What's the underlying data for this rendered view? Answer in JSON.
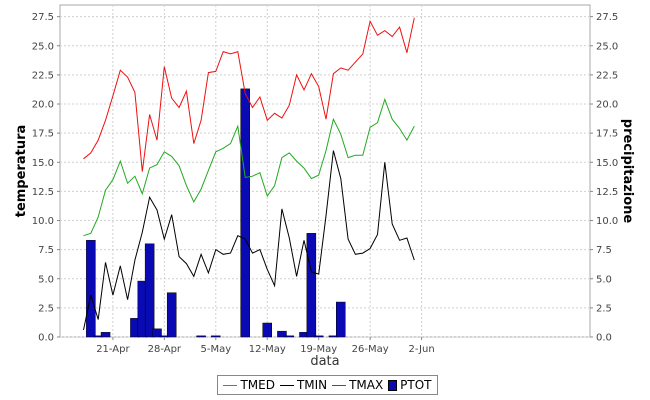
{
  "chart_data": {
    "type": "line+bar",
    "xlabel": "data",
    "ylabel_left": "temperatura",
    "ylabel_right": "precipitazione",
    "ylim": [
      0,
      28.5
    ],
    "yticks": [
      "0.0",
      "2.5",
      "5.0",
      "7.5",
      "10.0",
      "12.5",
      "15.0",
      "17.5",
      "20.0",
      "22.5",
      "25.0",
      "27.5"
    ],
    "x_start_date": "2014-04-17",
    "x_tick_labels": [
      "21-Apr",
      "28-Apr",
      "5-May",
      "12-May",
      "19-May",
      "26-May",
      "2-Jun"
    ],
    "grid": true,
    "legend_position": "bottom",
    "series": [
      {
        "name": "TMED",
        "type": "line",
        "color": "#22aa22",
        "values": [
          8.7,
          8.9,
          10.3,
          12.6,
          13.5,
          15.1,
          13.2,
          13.8,
          12.3,
          14.5,
          14.8,
          15.9,
          15.5,
          14.7,
          13.0,
          11.6,
          12.7,
          14.3,
          15.9,
          16.2,
          16.6,
          18.1,
          13.7,
          13.8,
          14.1,
          12.1,
          13.0,
          15.4,
          15.8,
          15.1,
          14.5,
          13.6,
          13.9,
          16.0,
          18.7,
          17.4,
          15.4,
          15.6,
          15.6,
          18.0,
          18.4,
          20.4,
          18.7,
          17.9,
          16.9,
          18.1
        ]
      },
      {
        "name": "TMIN",
        "type": "line",
        "color": "#000000",
        "values": [
          0.6,
          3.6,
          1.5,
          6.4,
          3.6,
          6.1,
          3.2,
          6.6,
          9.0,
          12.0,
          10.9,
          8.4,
          10.5,
          6.9,
          6.3,
          5.2,
          7.1,
          5.5,
          7.5,
          7.1,
          7.2,
          8.7,
          8.4,
          7.2,
          7.5,
          5.8,
          4.4,
          11.0,
          8.5,
          5.2,
          8.3,
          5.6,
          5.4,
          10.4,
          16.0,
          13.6,
          8.4,
          7.1,
          7.2,
          7.6,
          8.8,
          15.0,
          9.7,
          8.3,
          8.5,
          6.6
        ]
      },
      {
        "name": "TMAX",
        "type": "line",
        "color": "#ee1111",
        "values": [
          15.3,
          15.8,
          16.9,
          18.6,
          20.7,
          22.9,
          22.3,
          21.0,
          14.2,
          19.1,
          16.9,
          23.2,
          20.5,
          19.7,
          21.1,
          16.6,
          18.6,
          22.7,
          22.8,
          24.5,
          24.3,
          24.5,
          20.9,
          19.7,
          20.6,
          18.6,
          19.2,
          18.8,
          19.9,
          22.5,
          21.2,
          22.6,
          21.5,
          18.7,
          22.6,
          23.1,
          22.9,
          23.6,
          24.3,
          27.1,
          25.9,
          26.3,
          25.8,
          26.6,
          24.4,
          27.4
        ]
      },
      {
        "name": "PTOT",
        "type": "bar",
        "color": "#0a0ab4",
        "values": [
          0,
          8.3,
          0.1,
          0.4,
          0,
          0,
          0,
          1.6,
          4.8,
          8.0,
          0.7,
          0.1,
          3.8,
          0,
          0,
          0,
          0.1,
          0,
          0.1,
          0,
          0,
          0,
          21.3,
          0,
          0,
          1.2,
          0,
          0.5,
          0.1,
          0,
          0.4,
          8.9,
          0.1,
          0,
          0.1,
          3.0,
          0,
          0,
          0,
          0,
          0,
          0,
          0,
          0,
          0,
          0
        ]
      }
    ]
  }
}
